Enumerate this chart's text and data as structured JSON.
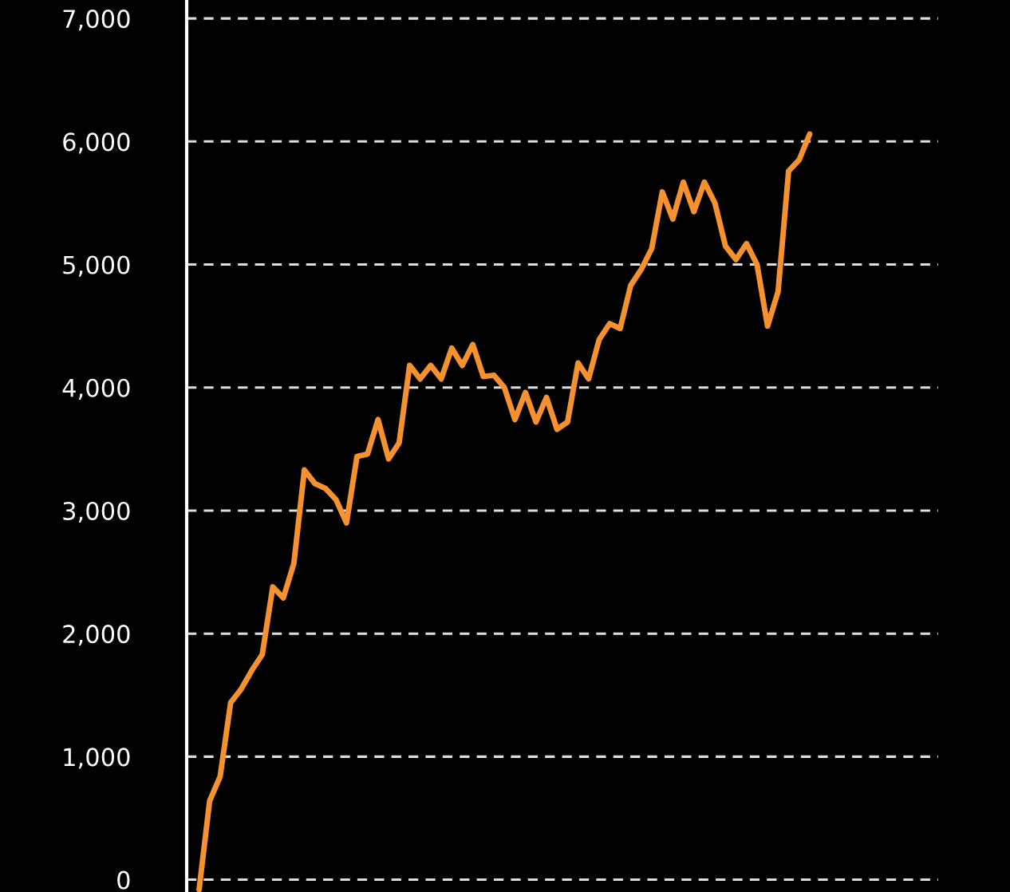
{
  "chart_data": {
    "type": "line",
    "categories": [
      null,
      null,
      null,
      null,
      null,
      null,
      null,
      null,
      null,
      null,
      null,
      null,
      null,
      null,
      null,
      null,
      null,
      null,
      null,
      null,
      null,
      null,
      null,
      null,
      null,
      null,
      null,
      null,
      null,
      null,
      null,
      null,
      null,
      null,
      null,
      null,
      null,
      null,
      null,
      null,
      null,
      null,
      null,
      null,
      null,
      null,
      null,
      null,
      null,
      null,
      null,
      null,
      null,
      null,
      null,
      null,
      null,
      null,
      null
    ],
    "series": [
      {
        "color": "#f5922f",
        "values": [
          -80,
          640,
          840,
          1440,
          1550,
          1700,
          1830,
          2380,
          2290,
          2570,
          3330,
          3220,
          3180,
          3090,
          2900,
          3440,
          3460,
          3740,
          3420,
          3550,
          4180,
          4070,
          4180,
          4070,
          4320,
          4180,
          4350,
          4090,
          4100,
          4000,
          3740,
          3960,
          3720,
          3920,
          3660,
          3720,
          4200,
          4070,
          4390,
          4520,
          4480,
          4830,
          4960,
          5130,
          5590,
          5370,
          5670,
          5430,
          5670,
          5500,
          5150,
          5040,
          5170,
          5000,
          4500,
          4780,
          5760,
          5850,
          6060
        ]
      }
    ],
    "ylim": [
      -100,
      7150
    ],
    "yticks": [
      {
        "value": 0,
        "label": "0"
      },
      {
        "value": 1000,
        "label": "1,000"
      },
      {
        "value": 2000,
        "label": "2,000"
      },
      {
        "value": 3000,
        "label": "3,000"
      },
      {
        "value": 4000,
        "label": "4,000"
      },
      {
        "value": 5000,
        "label": "5,000"
      },
      {
        "value": 6000,
        "label": "6,000"
      },
      {
        "value": 7000,
        "label": "7,000"
      }
    ],
    "grid": "y",
    "line_style": "solid",
    "marker": "none"
  }
}
